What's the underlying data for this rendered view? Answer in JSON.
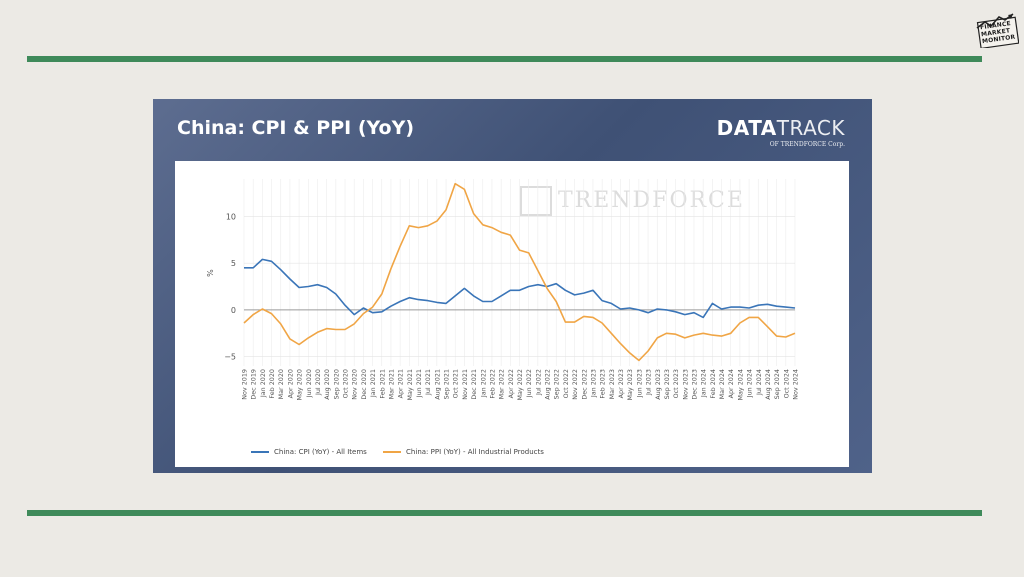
{
  "header": {
    "brand": {
      "line1": "FINANCE",
      "line2": "MARKET",
      "line3": "MONITOR"
    }
  },
  "panel": {
    "title": "China: CPI & PPI (YoY)",
    "logo": {
      "main_bold": "DATA",
      "main_light": "TRACK",
      "sub": "OF TRENDFORCE Corp."
    },
    "watermark": "TRENDFORCE"
  },
  "colors": {
    "cpi": "#3a75b8",
    "ppi": "#f0a545",
    "rule": "#3f8a5a"
  },
  "chart_data": {
    "type": "line",
    "title": "China: CPI & PPI (YoY)",
    "ylabel": "%",
    "xlabel": "",
    "ylim": [
      -6,
      14
    ],
    "yticks": [
      -5,
      0,
      5,
      10
    ],
    "ytick_labels": [
      "−5",
      "0",
      "5",
      "10"
    ],
    "grid": true,
    "legend_position": "bottom-left",
    "x": [
      "Nov 2019",
      "Dec 2019",
      "Jan 2020",
      "Feb 2020",
      "Mar 2020",
      "Apr 2020",
      "May 2020",
      "Jun 2020",
      "Jul 2020",
      "Aug 2020",
      "Sep 2020",
      "Oct 2020",
      "Nov 2020",
      "Dec 2020",
      "Jan 2021",
      "Feb 2021",
      "Mar 2021",
      "Apr 2021",
      "May 2021",
      "Jun 2021",
      "Jul 2021",
      "Aug 2021",
      "Sep 2021",
      "Oct 2021",
      "Nov 2021",
      "Dec 2021",
      "Jan 2022",
      "Feb 2022",
      "Mar 2022",
      "Apr 2022",
      "May 2022",
      "Jun 2022",
      "Jul 2022",
      "Aug 2022",
      "Sep 2022",
      "Oct 2022",
      "Nov 2022",
      "Dec 2022",
      "Jan 2023",
      "Feb 2023",
      "Mar 2023",
      "Apr 2023",
      "May 2023",
      "Jun 2023",
      "Jul 2023",
      "Aug 2023",
      "Sep 2023",
      "Oct 2023",
      "Nov 2023",
      "Dec 2023",
      "Jan 2024",
      "Feb 2024",
      "Mar 2024",
      "Apr 2024",
      "May 2024",
      "Jun 2024",
      "Jul 2024",
      "Aug 2024",
      "Sep 2024",
      "Oct 2024",
      "Nov 2024"
    ],
    "series": [
      {
        "name": "China: CPI (YoY) - All Items",
        "values": [
          4.5,
          4.5,
          5.4,
          5.2,
          4.3,
          3.3,
          2.4,
          2.5,
          2.7,
          2.4,
          1.7,
          0.5,
          -0.5,
          0.2,
          -0.3,
          -0.2,
          0.4,
          0.9,
          1.3,
          1.1,
          1.0,
          0.8,
          0.7,
          1.5,
          2.3,
          1.5,
          0.9,
          0.9,
          1.5,
          2.1,
          2.1,
          2.5,
          2.7,
          2.5,
          2.8,
          2.1,
          1.6,
          1.8,
          2.1,
          1.0,
          0.7,
          0.1,
          0.2,
          0.0,
          -0.3,
          0.1,
          0.0,
          -0.2,
          -0.5,
          -0.3,
          -0.8,
          0.7,
          0.1,
          0.3,
          0.3,
          0.2,
          0.5,
          0.6,
          0.4,
          0.3,
          0.2
        ]
      },
      {
        "name": "China: PPI (YoY) - All Industrial Products",
        "values": [
          -1.4,
          -0.5,
          0.1,
          -0.4,
          -1.5,
          -3.1,
          -3.7,
          -3.0,
          -2.4,
          -2.0,
          -2.1,
          -2.1,
          -1.5,
          -0.4,
          0.3,
          1.7,
          4.4,
          6.8,
          9.0,
          8.8,
          9.0,
          9.5,
          10.7,
          13.5,
          12.9,
          10.3,
          9.1,
          8.8,
          8.3,
          8.0,
          6.4,
          6.1,
          4.2,
          2.3,
          0.9,
          -1.3,
          -1.3,
          -0.7,
          -0.8,
          -1.4,
          -2.5,
          -3.6,
          -4.6,
          -5.4,
          -4.4,
          -3.0,
          -2.5,
          -2.6,
          -3.0,
          -2.7,
          -2.5,
          -2.7,
          -2.8,
          -2.5,
          -1.4,
          -0.8,
          -0.8,
          -1.8,
          -2.8,
          -2.9,
          -2.5
        ]
      }
    ]
  }
}
